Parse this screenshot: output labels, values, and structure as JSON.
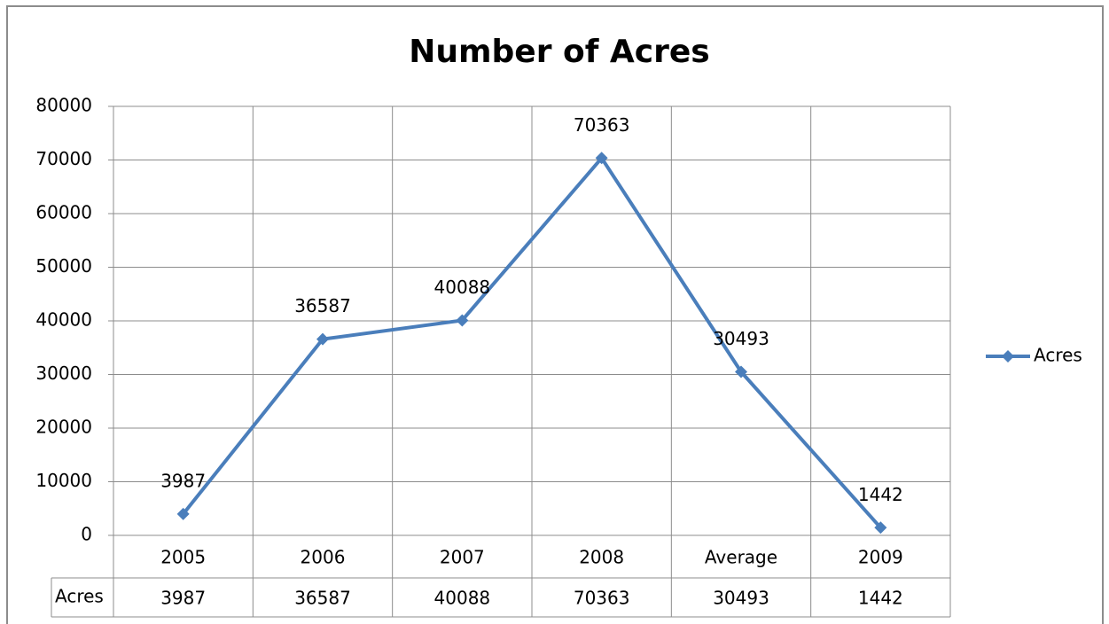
{
  "chart_data": {
    "type": "line",
    "title": "Number of Acres",
    "categories": [
      "2005",
      "2006",
      "2007",
      "2008",
      "Average",
      "2009"
    ],
    "series": [
      {
        "name": "Acres",
        "color": "#4a7ebb",
        "values": [
          3987,
          36587,
          40088,
          70363,
          30493,
          1442
        ]
      }
    ],
    "ylim": [
      0,
      80000
    ],
    "yticks": [
      0,
      10000,
      20000,
      30000,
      40000,
      50000,
      60000,
      70000,
      80000
    ],
    "grid": true,
    "legend": "right",
    "data_labels": true,
    "data_table": true
  }
}
